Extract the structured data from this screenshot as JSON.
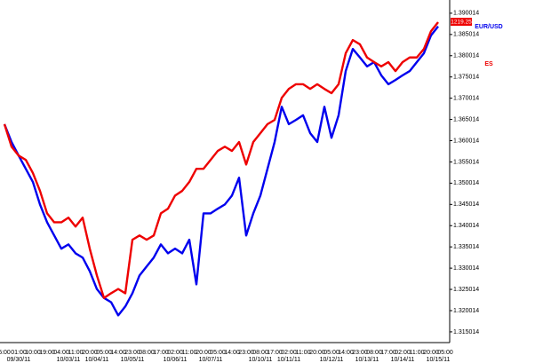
{
  "chart_data": {
    "type": "line",
    "categories": [
      "5:00",
      null,
      "01:00",
      null,
      "10:00",
      null,
      "19:00",
      null,
      "04:00",
      null,
      "11:00",
      null,
      "20:00",
      null,
      "05:00",
      null,
      "14:00",
      null,
      "23:00",
      null,
      "08:00",
      null,
      "17:00",
      null,
      "02:00",
      null,
      "11:00",
      null,
      "20:00",
      null,
      "05:00",
      null,
      "14:00",
      null,
      "23:00",
      null,
      "08:00",
      null,
      "17:00",
      null,
      "02:00",
      null,
      "11:00",
      null,
      "20:00",
      null,
      "05:00",
      null,
      "14:00",
      null,
      "23:00",
      null,
      "08:00",
      null,
      "17:00",
      null,
      "02:00",
      null,
      "11:00",
      null,
      "20:00",
      null,
      "05:00"
    ],
    "dates": [
      null,
      null,
      "09/30/11",
      null,
      null,
      null,
      null,
      null,
      null,
      "10/03/11",
      null,
      null,
      null,
      "10/04/11",
      null,
      null,
      null,
      null,
      "10/05/11",
      null,
      null,
      null,
      null,
      null,
      "10/06/11",
      null,
      null,
      null,
      null,
      "10/07/11",
      null,
      null,
      null,
      null,
      null,
      null,
      "10/10/11",
      null,
      null,
      null,
      "10/11/11",
      null,
      null,
      null,
      null,
      null,
      "10/12/11",
      null,
      null,
      null,
      null,
      "10/13/11",
      null,
      null,
      null,
      null,
      "10/14/11",
      null,
      null,
      null,
      null,
      "10/15/11",
      null
    ],
    "series": [
      {
        "name": "EUR/USD",
        "color": "#0000ee",
        "values": [
          1.3639,
          1.3597,
          1.3565,
          1.3534,
          1.3503,
          1.345,
          1.3408,
          1.3377,
          1.3346,
          1.3356,
          1.3335,
          1.3325,
          1.3293,
          1.3251,
          1.323,
          1.322,
          1.3189,
          1.321,
          1.3241,
          1.3283,
          1.3304,
          1.3325,
          1.3356,
          1.3335,
          1.3346,
          1.3335,
          1.3367,
          1.3262,
          1.3429,
          1.3429,
          1.344,
          1.345,
          1.3471,
          1.3513,
          1.3377,
          1.3429,
          1.3471,
          1.3534,
          1.3597,
          1.368,
          1.3639,
          1.3649,
          1.366,
          1.3618,
          1.3597,
          1.368,
          1.3607,
          1.366,
          1.3764,
          1.3816,
          1.3796,
          1.3775,
          1.3785,
          1.3754,
          1.3733,
          1.3743,
          1.3754,
          1.3764,
          1.3785,
          1.3806,
          1.3848,
          1.3869,
          null
        ]
      },
      {
        "name": "ES",
        "color": "#ee0000",
        "values": [
          1.3639,
          1.3586,
          1.3565,
          1.3555,
          1.3524,
          1.3482,
          1.3429,
          1.3408,
          1.3408,
          1.3419,
          1.3398,
          1.3419,
          1.3346,
          1.3283,
          1.323,
          1.3241,
          1.3251,
          1.3241,
          1.3367,
          1.3377,
          1.3367,
          1.3377,
          1.3429,
          1.344,
          1.3471,
          1.3482,
          1.3503,
          1.3534,
          1.3534,
          1.3555,
          1.3576,
          1.3586,
          1.3576,
          1.3597,
          1.3544,
          1.3597,
          1.3618,
          1.3639,
          1.3649,
          1.3701,
          1.3722,
          1.3733,
          1.3733,
          1.3722,
          1.3733,
          1.3722,
          1.3712,
          1.3733,
          1.3806,
          1.3837,
          1.3827,
          1.3796,
          1.3785,
          1.3775,
          1.3785,
          1.3764,
          1.3785,
          1.3796,
          1.3796,
          1.3816,
          1.3858,
          1.3879,
          null
        ]
      }
    ],
    "last_label": "1219.25",
    "ylim": [
      1.3127,
      1.3925
    ],
    "yticks": [
      1.315014,
      1.320014,
      1.325014,
      1.330014,
      1.335014,
      1.340014,
      1.345014,
      1.350014,
      1.355014,
      1.360014,
      1.365014,
      1.370014,
      1.375014,
      1.380014,
      1.385014,
      1.390014
    ]
  }
}
